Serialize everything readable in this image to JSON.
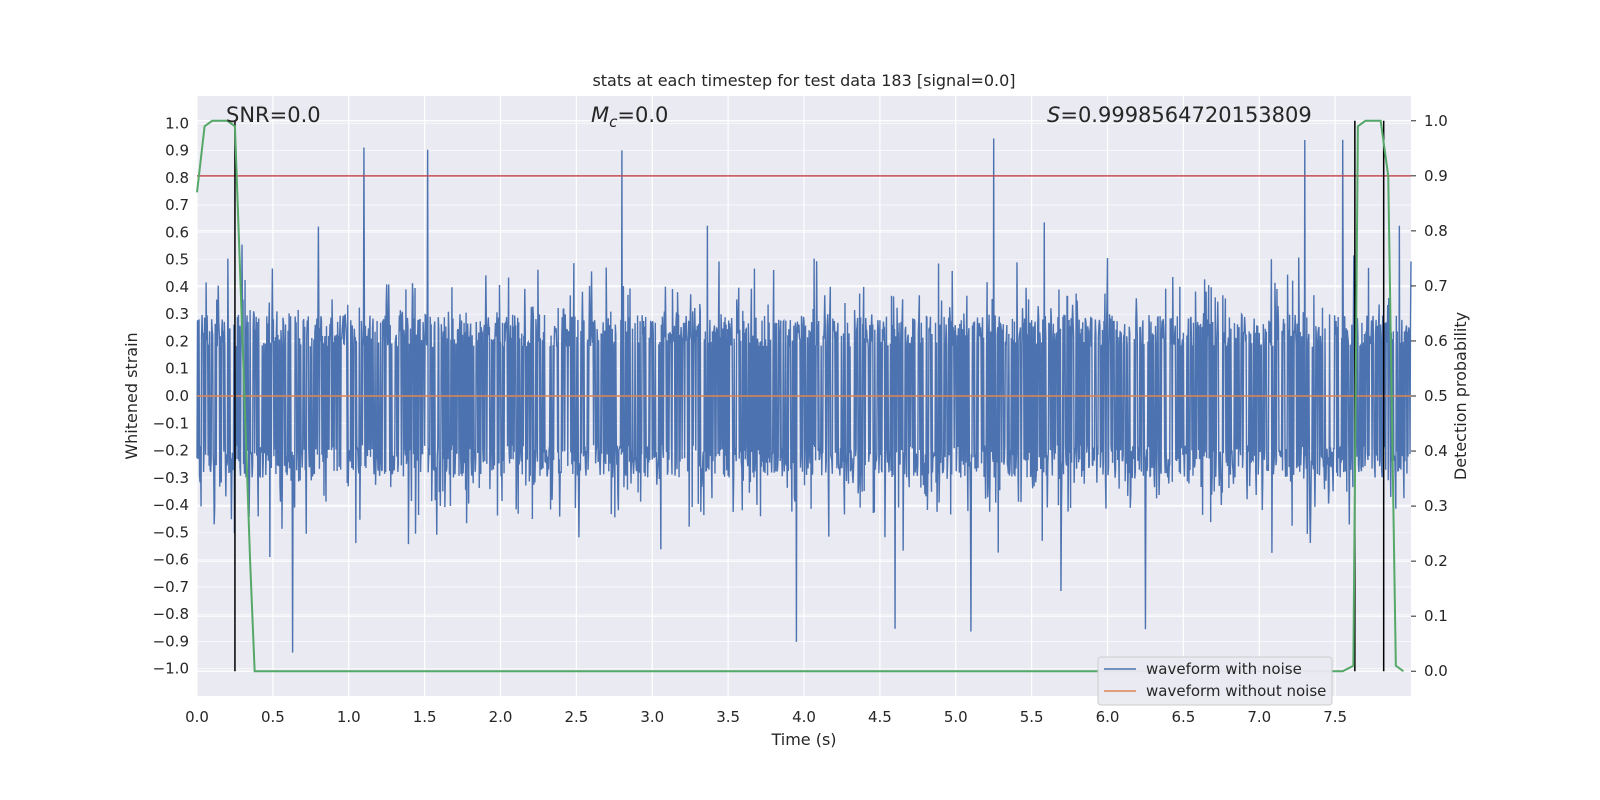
{
  "chart_data": {
    "type": "line",
    "title": "stats at each timestep for test data 183 [signal=0.0]",
    "xlabel": "Time (s)",
    "ylabel": "Whitened strain",
    "y2label": "Detection probability",
    "xlim": [
      0.0,
      8.0
    ],
    "ylim": [
      -1.1,
      1.1
    ],
    "y2lim": [
      -0.045,
      1.045
    ],
    "x_ticks": [
      0.0,
      0.5,
      1.0,
      1.5,
      2.0,
      2.5,
      3.0,
      3.5,
      4.0,
      4.5,
      5.0,
      5.5,
      6.0,
      6.5,
      7.0,
      7.5
    ],
    "x_tick_labels": [
      "0.0",
      "0.5",
      "1.0",
      "1.5",
      "2.0",
      "2.5",
      "3.0",
      "3.5",
      "4.0",
      "4.5",
      "5.0",
      "5.5",
      "6.0",
      "6.5",
      "7.0",
      "7.5"
    ],
    "y_ticks": [
      -1.0,
      -0.9,
      -0.8,
      -0.7,
      -0.6,
      -0.5,
      -0.4,
      -0.3,
      -0.2,
      -0.1,
      0.0,
      0.1,
      0.2,
      0.3,
      0.4,
      0.5,
      0.6,
      0.7,
      0.8,
      0.9,
      1.0
    ],
    "y_tick_labels": [
      "−1.0",
      "−0.9",
      "−0.8",
      "−0.7",
      "−0.6",
      "−0.5",
      "−0.4",
      "−0.3",
      "−0.2",
      "−0.1",
      "0.0",
      "0.1",
      "0.2",
      "0.3",
      "0.4",
      "0.5",
      "0.6",
      "0.7",
      "0.8",
      "0.9",
      "1.0"
    ],
    "y2_ticks": [
      0.0,
      0.1,
      0.2,
      0.3,
      0.4,
      0.5,
      0.6,
      0.7,
      0.8,
      0.9,
      1.0
    ],
    "y2_tick_labels": [
      "0.0",
      "0.1",
      "0.2",
      "0.3",
      "0.4",
      "0.5",
      "0.6",
      "0.7",
      "0.8",
      "0.9",
      "1.0"
    ],
    "annotations": {
      "snr": "SNR=0.0",
      "mc_symbol": "M",
      "mc_sub": "c",
      "mc_value": "=0.0",
      "s_symbol": "S",
      "s_value": "=0.9998564720153809"
    },
    "threshold": {
      "value": 0.9,
      "axis": "y2",
      "color": "#c44e52"
    },
    "vertical_markers": [
      0.25,
      7.63,
      7.82
    ],
    "series": [
      {
        "name": "waveform with noise",
        "axis": "y",
        "color": "#4c72b0",
        "kind": "noise",
        "envelope_positive": [
          0.86,
          0.97,
          0.98,
          0.97
        ],
        "envelope_negative": [
          -0.96,
          -0.86,
          -0.95,
          -0.9
        ],
        "peak_times_positive": [
          1.1,
          1.52,
          2.8,
          5.25,
          7.3,
          7.55
        ],
        "peak_times_negative": [
          0.63,
          3.95,
          4.6,
          5.1,
          6.25
        ]
      },
      {
        "name": "waveform without noise",
        "axis": "y",
        "color": "#dd8452",
        "x": [
          0.0,
          8.0
        ],
        "values": [
          0.0,
          0.0
        ]
      },
      {
        "name": "detection probability",
        "axis": "y2",
        "color": "#55a868",
        "x": [
          0.0,
          0.05,
          0.1,
          0.15,
          0.2,
          0.25,
          0.3,
          0.35,
          0.38,
          0.5,
          1.0,
          2.0,
          3.0,
          4.0,
          5.0,
          6.0,
          7.0,
          7.55,
          7.62,
          7.65,
          7.7,
          7.75,
          7.8,
          7.85,
          7.9,
          7.95
        ],
        "values": [
          0.87,
          0.99,
          1.0,
          1.0,
          1.0,
          0.99,
          0.6,
          0.2,
          0.0,
          0.0,
          0.0,
          0.0,
          0.0,
          0.0,
          0.0,
          0.0,
          0.0,
          0.0,
          0.01,
          0.99,
          1.0,
          1.0,
          1.0,
          0.9,
          0.01,
          0.0
        ]
      }
    ],
    "legend": {
      "placement": "lower-right",
      "entries": [
        {
          "label": "waveform with noise",
          "color": "#4c72b0"
        },
        {
          "label": "waveform without noise",
          "color": "#dd8452"
        }
      ]
    },
    "style": {
      "background": "#eaeaf2",
      "grid": "#ffffff",
      "marker_color": "#000000"
    }
  }
}
